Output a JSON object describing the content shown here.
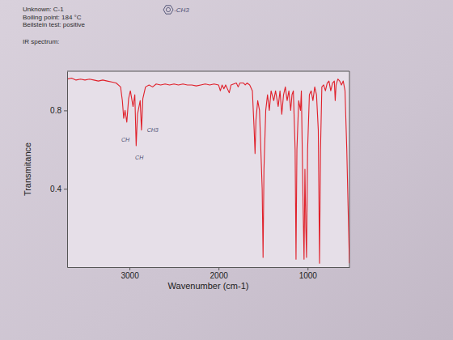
{
  "chart_data": {
    "type": "line",
    "header": [
      "Unknown: C-1",
      "Boiling point: 184 °C",
      "Beilstein test: positive"
    ],
    "title": "IR spectrum:",
    "structure_note": "-CH3",
    "x_label": "Wavenumber (cm-1)",
    "y_label": "Transmitance",
    "xlim": [
      3700,
      530
    ],
    "ylim": [
      0,
      1.0
    ],
    "xticks": [
      3000,
      2000,
      1000
    ],
    "yticks": [
      0.4,
      0.8
    ],
    "annotations": [
      {
        "text": "CH",
        "x": 3045,
        "y": 0.64
      },
      {
        "text": "CH",
        "x": 2890,
        "y": 0.55
      },
      {
        "text": "CH3",
        "x": 2740,
        "y": 0.69
      }
    ],
    "x": [
      3700,
      3650,
      3600,
      3550,
      3500,
      3450,
      3400,
      3350,
      3300,
      3250,
      3200,
      3150,
      3100,
      3080,
      3065,
      3050,
      3030,
      3010,
      2990,
      2960,
      2940,
      2925,
      2910,
      2880,
      2865,
      2850,
      2820,
      2780,
      2740,
      2700,
      2650,
      2600,
      2550,
      2500,
      2450,
      2400,
      2350,
      2300,
      2250,
      2200,
      2150,
      2100,
      2050,
      2000,
      1980,
      1960,
      1940,
      1920,
      1880,
      1860,
      1800,
      1780,
      1760,
      1720,
      1700,
      1680,
      1650,
      1620,
      1600,
      1590,
      1580,
      1560,
      1540,
      1510,
      1500,
      1490,
      1470,
      1450,
      1430,
      1410,
      1380,
      1360,
      1330,
      1310,
      1290,
      1270,
      1250,
      1230,
      1210,
      1190,
      1175,
      1160,
      1140,
      1130,
      1120,
      1100,
      1080,
      1070,
      1050,
      1040,
      1030,
      1020,
      1012,
      1000,
      980,
      960,
      940,
      920,
      900,
      880,
      866,
      855,
      840,
      820,
      800,
      780,
      760,
      740,
      720,
      700,
      690,
      680,
      660,
      640,
      620,
      600,
      580,
      560,
      540,
      530
    ],
    "series": [
      {
        "color": "#e0202a",
        "values": [
          0.96,
          0.965,
          0.955,
          0.96,
          0.955,
          0.96,
          0.955,
          0.95,
          0.955,
          0.95,
          0.945,
          0.94,
          0.92,
          0.85,
          0.76,
          0.8,
          0.74,
          0.86,
          0.9,
          0.82,
          0.88,
          0.62,
          0.78,
          0.85,
          0.7,
          0.86,
          0.92,
          0.93,
          0.92,
          0.935,
          0.93,
          0.935,
          0.93,
          0.935,
          0.93,
          0.935,
          0.93,
          0.93,
          0.925,
          0.93,
          0.935,
          0.93,
          0.935,
          0.93,
          0.9,
          0.93,
          0.91,
          0.93,
          0.89,
          0.93,
          0.94,
          0.92,
          0.94,
          0.94,
          0.93,
          0.94,
          0.93,
          0.9,
          0.7,
          0.58,
          0.75,
          0.85,
          0.8,
          0.4,
          0.05,
          0.5,
          0.8,
          0.88,
          0.8,
          0.9,
          0.85,
          0.9,
          0.82,
          0.9,
          0.78,
          0.88,
          0.92,
          0.85,
          0.9,
          0.8,
          0.88,
          0.9,
          0.6,
          0.04,
          0.6,
          0.85,
          0.8,
          0.9,
          0.3,
          0.04,
          0.5,
          0.2,
          0.05,
          0.6,
          0.88,
          0.9,
          0.85,
          0.92,
          0.88,
          0.7,
          0.02,
          0.6,
          0.92,
          0.93,
          0.9,
          0.94,
          0.95,
          0.9,
          0.94,
          0.95,
          0.85,
          0.93,
          0.96,
          0.95,
          0.93,
          0.95,
          0.9,
          0.6,
          0.2,
          0.02
        ]
      }
    ]
  }
}
